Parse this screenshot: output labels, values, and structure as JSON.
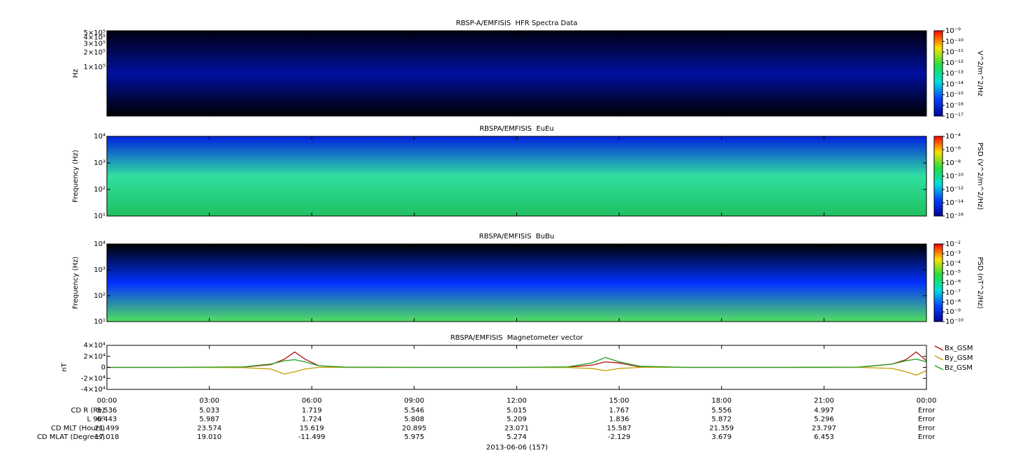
{
  "chart_data": [
    {
      "type": "spectrogram",
      "title": "RBSP-A/EMFISIS  HFR Spectra Data",
      "y_label": "Hz",
      "log_y": true,
      "ylim": [
        10000,
        550000
      ],
      "yticks": [
        {
          "value": 500000,
          "label": "5×10⁵"
        },
        {
          "value": 400000,
          "label": "4×10⁵"
        },
        {
          "value": 300000,
          "label": "3×10⁵"
        },
        {
          "value": 200000,
          "label": "2×10⁵"
        },
        {
          "value": 100000,
          "label": "1×10⁵"
        }
      ],
      "xlim": [
        0,
        24
      ],
      "xticks": [
        0,
        3,
        6,
        9,
        12,
        15,
        18,
        21,
        24
      ],
      "colorbar": {
        "label": "V^2/m^2/Hz",
        "lim": [
          1e-17,
          1e-09
        ],
        "ticks": [
          {
            "value": 1e-09,
            "label": "10⁻⁹"
          },
          {
            "value": 1e-10,
            "label": "10⁻¹⁰"
          },
          {
            "value": 1e-11,
            "label": "10⁻¹¹"
          },
          {
            "value": 1e-12,
            "label": "10⁻¹²"
          },
          {
            "value": 1e-13,
            "label": "10⁻¹³"
          },
          {
            "value": 1e-14,
            "label": "10⁻¹⁴"
          },
          {
            "value": 1e-15,
            "label": "10⁻¹⁵"
          },
          {
            "value": 1e-16,
            "label": "10⁻¹⁶"
          },
          {
            "value": 1e-17,
            "label": "10⁻¹⁷"
          }
        ]
      },
      "background": [
        "#000010",
        "#0010a0",
        "#000000"
      ]
    },
    {
      "type": "spectrogram",
      "title": "RBSPA/EMFISIS  EuEu",
      "y_label": "Frequency (Hz)",
      "log_y": true,
      "ylim": [
        10,
        10000
      ],
      "yticks": [
        {
          "value": 10,
          "label": "10¹"
        },
        {
          "value": 100,
          "label": "10²"
        },
        {
          "value": 1000,
          "label": "10³"
        },
        {
          "value": 10000,
          "label": "10⁴"
        }
      ],
      "xlim": [
        0,
        24
      ],
      "xticks": [
        0,
        3,
        6,
        9,
        12,
        15,
        18,
        21,
        24
      ],
      "colorbar": {
        "label": "PSD (V^2/m^2/Hz)",
        "lim": [
          1e-16,
          0.0001
        ],
        "ticks": [
          {
            "value": 0.0001,
            "label": "10⁻⁴"
          },
          {
            "value": 1e-06,
            "label": "10⁻⁶"
          },
          {
            "value": 1e-08,
            "label": "10⁻⁸"
          },
          {
            "value": 1e-10,
            "label": "10⁻¹⁰"
          },
          {
            "value": 1e-12,
            "label": "10⁻¹²"
          },
          {
            "value": 1e-14,
            "label": "10⁻¹⁴"
          },
          {
            "value": 1e-16,
            "label": "10⁻¹⁶"
          }
        ]
      },
      "background": [
        "#0020e0",
        "#30e0a0",
        "#20c060"
      ]
    },
    {
      "type": "spectrogram",
      "title": "RBSPA/EMFISIS  BuBu",
      "y_label": "Frequency (Hz)",
      "log_y": true,
      "ylim": [
        10,
        10000
      ],
      "yticks": [
        {
          "value": 10,
          "label": "10¹"
        },
        {
          "value": 100,
          "label": "10²"
        },
        {
          "value": 1000,
          "label": "10³"
        },
        {
          "value": 10000,
          "label": "10⁴"
        }
      ],
      "xlim": [
        0,
        24
      ],
      "xticks": [
        0,
        3,
        6,
        9,
        12,
        15,
        18,
        21,
        24
      ],
      "colorbar": {
        "label": "PSD (nT^2/Hz)",
        "lim": [
          1e-10,
          0.01
        ],
        "ticks": [
          {
            "value": 0.01,
            "label": "10⁻²"
          },
          {
            "value": 0.001,
            "label": "10⁻³"
          },
          {
            "value": 0.0001,
            "label": "10⁻⁴"
          },
          {
            "value": 1e-05,
            "label": "10⁻⁵"
          },
          {
            "value": 1e-06,
            "label": "10⁻⁶"
          },
          {
            "value": 1e-07,
            "label": "10⁻⁷"
          },
          {
            "value": 1e-08,
            "label": "10⁻⁸"
          },
          {
            "value": 1e-09,
            "label": "10⁻⁹"
          },
          {
            "value": 1e-10,
            "label": "10⁻¹⁰"
          }
        ]
      },
      "background": [
        "#000000",
        "#0030ff",
        "#50e060"
      ]
    },
    {
      "type": "line",
      "title": "RBSPA/EMFISIS  Magnetometer vector",
      "y_label": "nT",
      "ylim": [
        -40000,
        40000
      ],
      "yticks": [
        {
          "value": 40000,
          "label": "4×10⁴"
        },
        {
          "value": 20000,
          "label": "2×10⁴"
        },
        0,
        {
          "value": -20000,
          "label": "-2×10⁴"
        },
        {
          "value": -40000,
          "label": "-4×10⁴"
        }
      ],
      "xlim": [
        0,
        24
      ],
      "xticks": [
        {
          "value": 0,
          "label": "00:00"
        },
        {
          "value": 3,
          "label": "03:00"
        },
        {
          "value": 6,
          "label": "06:00"
        },
        {
          "value": 9,
          "label": "09:00"
        },
        {
          "value": 12,
          "label": "12:00"
        },
        {
          "value": 15,
          "label": "15:00"
        },
        {
          "value": 18,
          "label": "18:00"
        },
        {
          "value": 21,
          "label": "21:00"
        },
        {
          "value": 24,
          "label": "00:00"
        }
      ],
      "x": [
        0,
        2,
        4,
        4.8,
        5.2,
        5.5,
        5.8,
        6.2,
        7,
        9,
        12,
        13.5,
        14.2,
        14.6,
        15,
        15.6,
        17,
        20,
        22,
        23,
        23.4,
        23.7,
        24
      ],
      "series": [
        {
          "name": "Bx_GSM",
          "color": "#b01010",
          "values": [
            0,
            0,
            500,
            5000,
            15000,
            28000,
            15000,
            3000,
            0,
            0,
            0,
            500,
            4000,
            10000,
            8000,
            1000,
            0,
            0,
            0,
            6000,
            14000,
            28000,
            12000
          ]
        },
        {
          "name": "By_GSM",
          "color": "#c0a000",
          "values": [
            0,
            0,
            -500,
            -3000,
            -12000,
            -8000,
            -3000,
            0,
            0,
            0,
            0,
            -300,
            -2000,
            -6000,
            -2000,
            0,
            0,
            0,
            0,
            -2000,
            -8000,
            -14000,
            -6000
          ]
        },
        {
          "name": "Bz_GSM",
          "color": "#20a020",
          "values": [
            0,
            0,
            1000,
            6000,
            12000,
            14000,
            10000,
            3000,
            500,
            0,
            0,
            1000,
            8000,
            18000,
            10000,
            2000,
            0,
            0,
            500,
            6000,
            12000,
            15000,
            10000
          ]
        }
      ]
    }
  ],
  "ephemeris": {
    "rows": [
      {
        "label": "CD R (Re)",
        "values": [
          "5.536",
          "5.033",
          "1.719",
          "5.546",
          "5.015",
          "1.767",
          "5.556",
          "4.997",
          "Error"
        ]
      },
      {
        "label": "L 90⁰",
        "values": [
          "6.443",
          "5.987",
          "1.724",
          "5.808",
          "5.209",
          "1.836",
          "5.872",
          "5.296",
          "Error"
        ]
      },
      {
        "label": "CD MLT (Hours)",
        "values": [
          "21.499",
          "23.574",
          "15.619",
          "20.895",
          "23.071",
          "15.587",
          "21.359",
          "23.797",
          "Error"
        ]
      },
      {
        "label": "CD MLAT (Degrees)",
        "values": [
          "17.018",
          "19.010",
          "-11.499",
          "5.975",
          "5.274",
          "-2.129",
          "3.679",
          "6.453",
          "Error"
        ]
      }
    ],
    "date": "2013-06-06 (157)"
  }
}
